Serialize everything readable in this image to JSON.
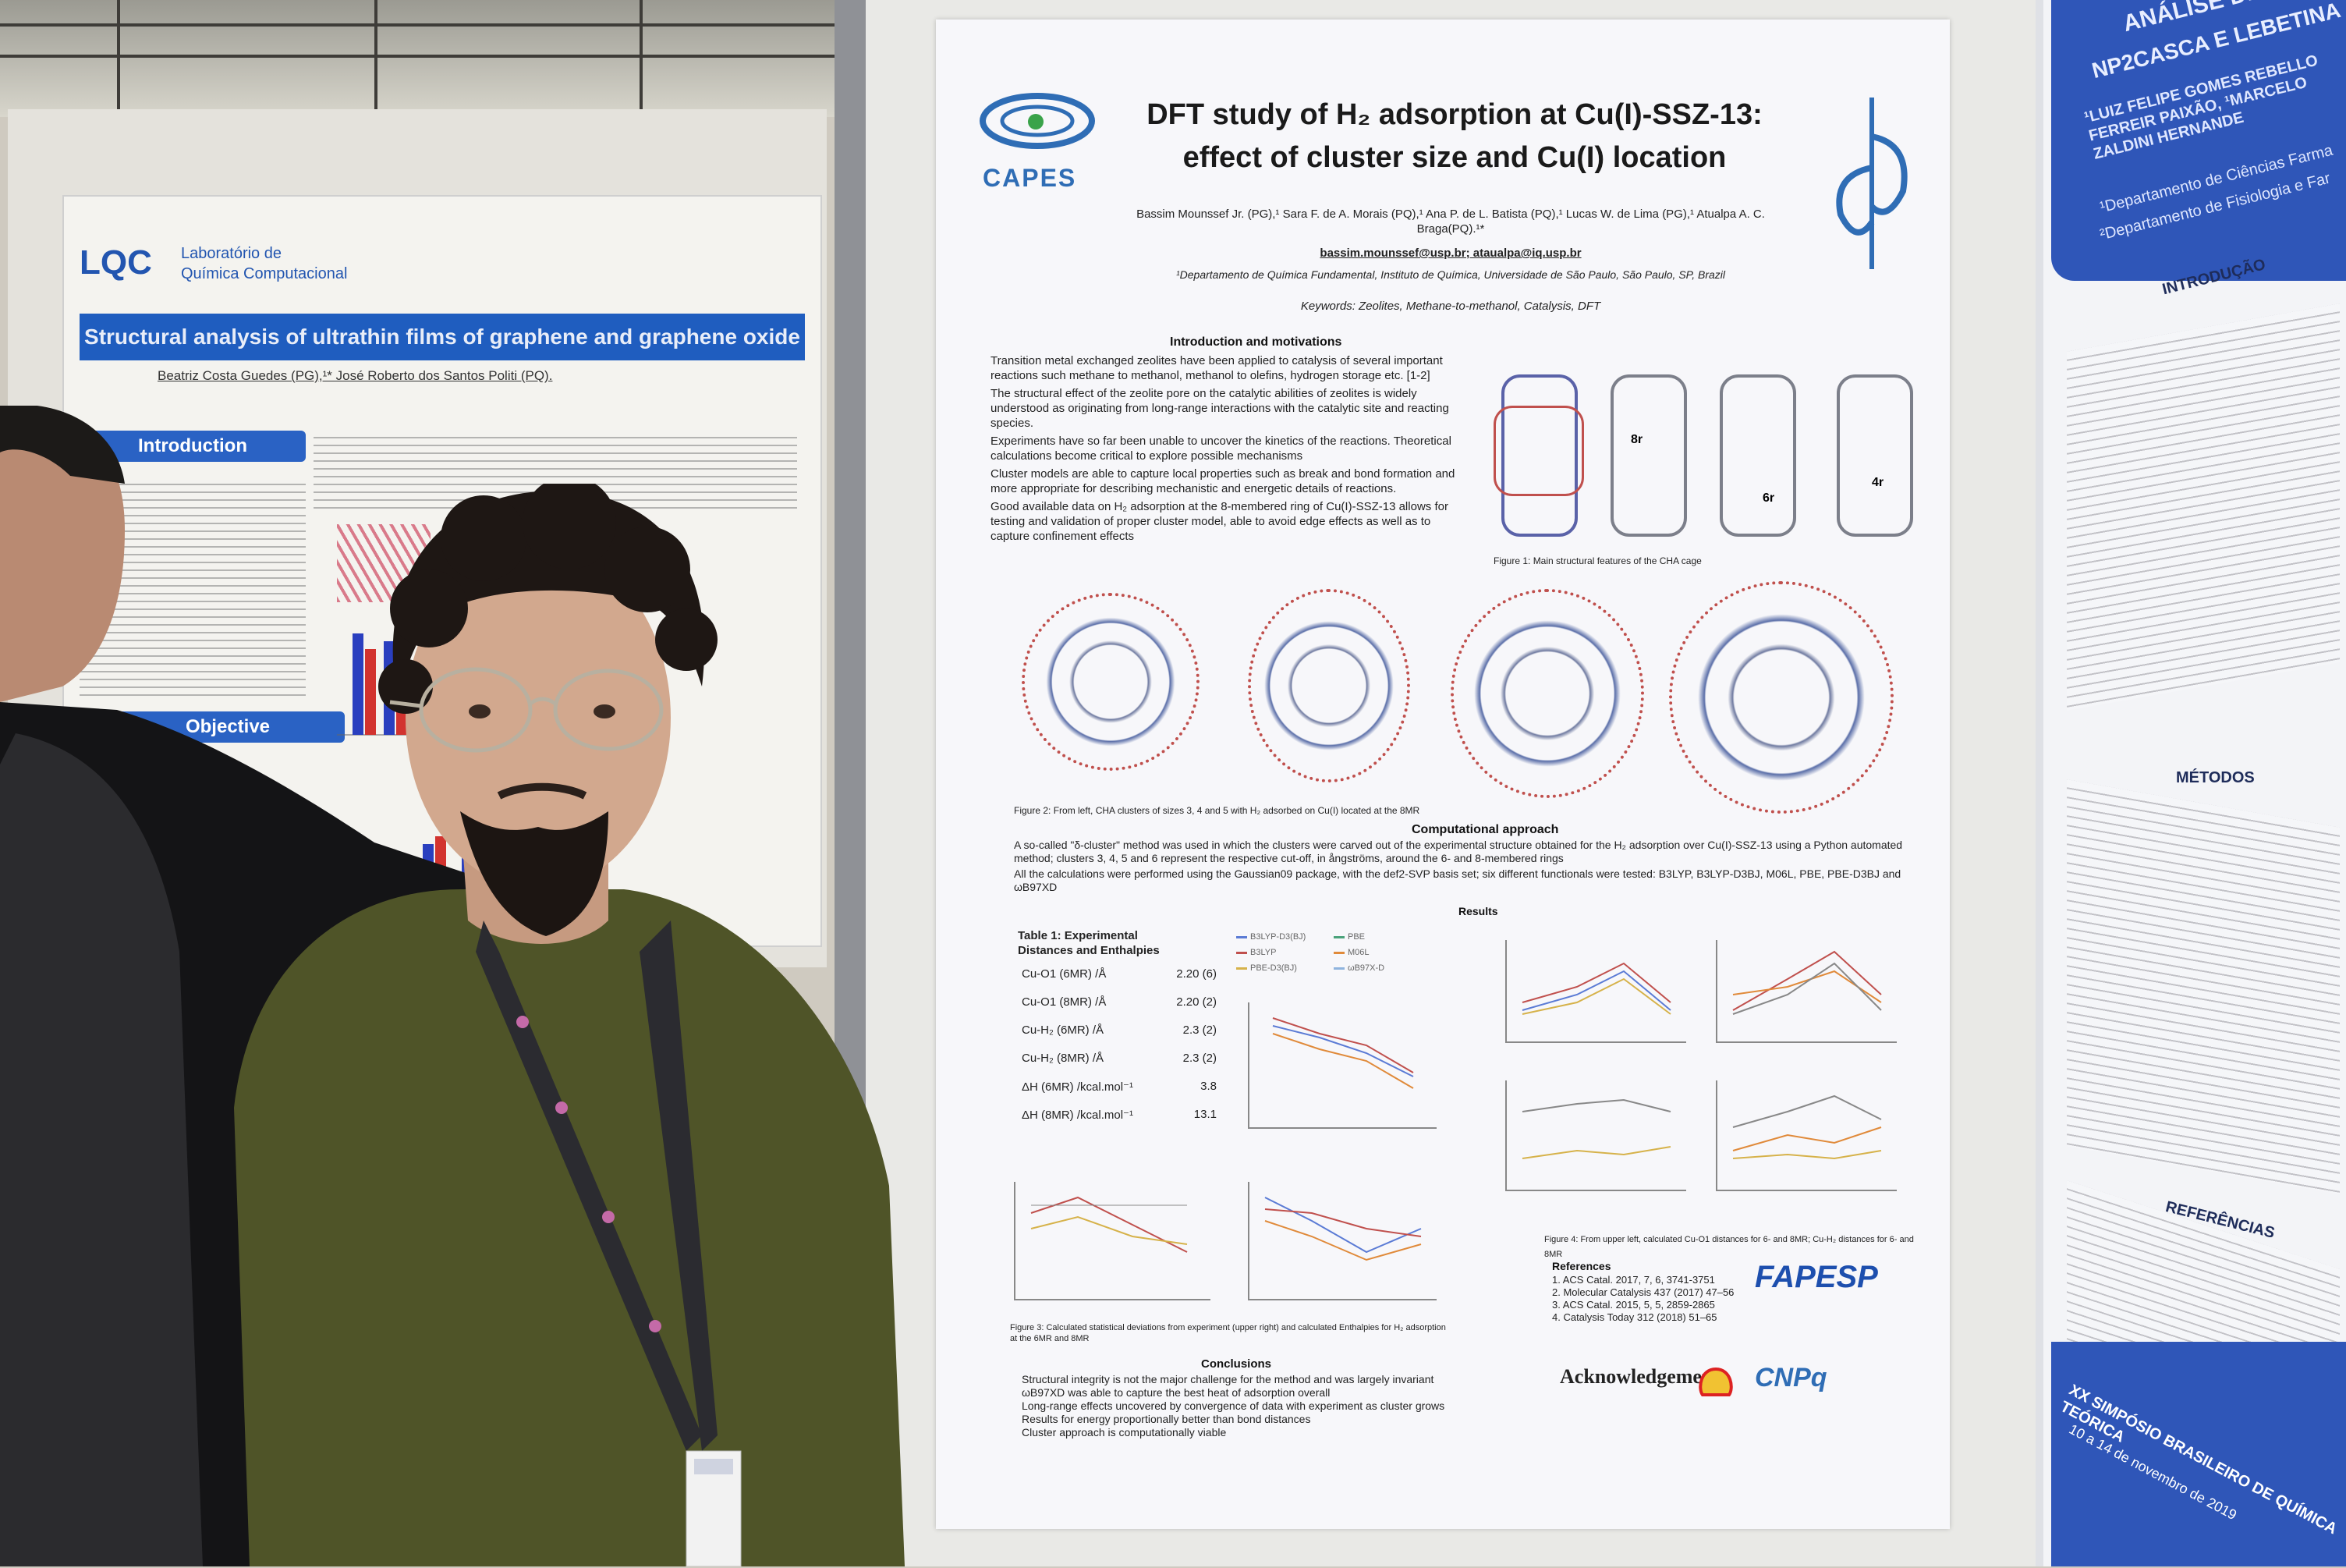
{
  "left_poster": {
    "logo": "LQC",
    "lab_name_1": "Laboratório de",
    "lab_name_2": "Química Computacional",
    "title": "Structural analysis of ultrathin films of graphene and graphene oxide",
    "authors": "Beatriz Costa Guedes (PG),¹* José Roberto dos Santos Politi (PQ).",
    "sections": [
      "Introduction",
      "Objective"
    ]
  },
  "poster": {
    "capes_label": "CAPES",
    "title_line1": "DFT study of H₂ adsorption at Cu(I)-SSZ-13:",
    "title_line2": "effect of cluster size and Cu(I) location",
    "authors": "Bassim Mounssef Jr. (PG),¹ Sara F. de A. Morais (PQ),¹ Ana P. de L. Batista (PQ),¹ Lucas W. de Lima (PG),¹ Atualpa A. C. Braga(PQ).¹*",
    "emails": "bassim.mounssef@usp.br; ataualpa@iq.usp.br",
    "affiliation": "¹Departamento de Química Fundamental, Instituto de Química, Universidade de São Paulo, São Paulo, SP, Brazil",
    "keywords": "Keywords: Zeolites, Methane-to-methanol, Catalysis, DFT",
    "intro_heading": "Introduction and motivations",
    "intro_bullets": [
      "Transition metal exchanged zeolites have been applied to catalysis of several important reactions such methane to methanol, methanol to olefins, hydrogen storage etc. [1-2]",
      "The structural effect of the zeolite pore on the catalytic abilities of zeolites is widely understood as originating from long-range interactions with the catalytic site and reacting species.",
      "Experiments have so far been unable to uncover the kinetics of the reactions. Theoretical calculations become critical to explore possible mechanisms",
      "Cluster models are able to capture local properties such as break and bond formation and more appropriate for describing mechanistic and energetic details of reactions.",
      "Good available data on H₂ adsorption at the 8-membered ring of Cu(I)-SSZ-13 allows for testing and validation of proper cluster model, able to avoid edge effects as well as to capture confinement effects"
    ],
    "fig1_caption": "Figure 1: Main structural features of the CHA cage",
    "fig1_labels": [
      "8r",
      "6r",
      "4r"
    ],
    "fig2_caption": "Figure 2: From left, CHA clusters of sizes 3, 4 and 5 with H₂ adsorbed on Cu(I) located at the 8MR",
    "comp_heading": "Computational approach",
    "comp_bullets": [
      "A so-called \"δ-cluster\" method was used in which the clusters were carved out of the experimental structure obtained for the H₂ adsorption over Cu(I)-SSZ-13 using a Python automated method; clusters 3, 4, 5 and 6 represent the respective cut-off, in ångströms, around the 6- and 8-membered rings",
      "All the calculations were performed using the Gaussian09 package, with the def2-SVP basis set; six different functionals were tested: B3LYP, B3LYP-D3BJ, M06L, PBE, PBE-D3BJ and ωB97XD"
    ],
    "results_heading": "Results",
    "table1_title": "Table 1: Experimental Distances and Enthalpies",
    "table1_rows": [
      {
        "label": "Cu-O1 (6MR) /Å",
        "value": "2.20 (6)"
      },
      {
        "label": "Cu-O1 (8MR) /Å",
        "value": "2.20 (2)"
      },
      {
        "label": "Cu-H₂ (6MR) /Å",
        "value": "2.3 (2)"
      },
      {
        "label": "Cu-H₂ (8MR) /Å",
        "value": "2.3 (2)"
      },
      {
        "label": "ΔH (6MR) /kcal.mol⁻¹",
        "value": "3.8"
      },
      {
        "label": "ΔH (8MR) /kcal.mol⁻¹",
        "value": "13.1"
      }
    ],
    "legend": [
      {
        "name": "B3LYP-D3(BJ)",
        "color": "#5b7bd5"
      },
      {
        "name": "PBE",
        "color": "#4aa27a"
      },
      {
        "name": "B3LYP",
        "color": "#c0504d"
      },
      {
        "name": "M06L",
        "color": "#e08a3a"
      },
      {
        "name": "PBE-D3(BJ)",
        "color": "#d6b24a"
      },
      {
        "name": "ωB97X-D",
        "color": "#8fb4de"
      }
    ],
    "fig3_caption": "Figure 3: Calculated statistical deviations from experiment (upper right) and calculated Enthalpies for H₂ adsorption at the 6MR and 8MR",
    "fig4_caption": "Figure 4: From upper left, calculated Cu-O1 distances for 6- and 8MR; Cu-H₂ distances for 6- and 8MR",
    "conclusions_heading": "Conclusions",
    "conclusions": [
      "Structural integrity is not the major challenge for the method and was largely invariant",
      "ωB97XD was able to capture the best heat of adsorption overall",
      "Long-range effects uncovered by convergence of data with experiment as cluster grows",
      "Results for energy proportionally better than bond distances",
      "Cluster approach is computationally viable"
    ],
    "references_heading": "References",
    "references": [
      "1. ACS Catal. 2017, 7, 6, 3741-3751",
      "2. Molecular Catalysis 437 (2017) 47–56",
      "3. ACS Catal. 2015, 5, 5, 2859-2865",
      "4. Catalysis Today 312 (2018) 51–65"
    ],
    "fapesp": "FAPESP",
    "acknowledgements": "Acknowledgements",
    "cnpq": "CNPq"
  },
  "right_poster": {
    "title_1": "ANÁLISE DE",
    "title_2": "NP2CASCA E LEBETINA",
    "authors": "¹LUIZ FELIPE GOMES REBELLO FERREIR PAIXÃO, ¹MARCELO ZALDINI HERNANDE",
    "dept_1": "¹Departamento de Ciências Farma",
    "dept_2": "²Departamento de Fisiologia e Far",
    "intro": "INTRODUÇÃO",
    "metodos": "MÉTODOS",
    "referencias": "REFERÊNCIAS",
    "event": "XX SIMPÓSIO BRASILEIRO DE QUÍMICA TEÓRICA",
    "dates": "10 a 14 de novembro de 2019"
  },
  "colors": {
    "poster_blue": "#2a62c4",
    "capes_blue": "#2f6db5",
    "capes_green": "#3aa34a",
    "shirt": "#4f5428",
    "lanyard": "#2b2b30"
  }
}
